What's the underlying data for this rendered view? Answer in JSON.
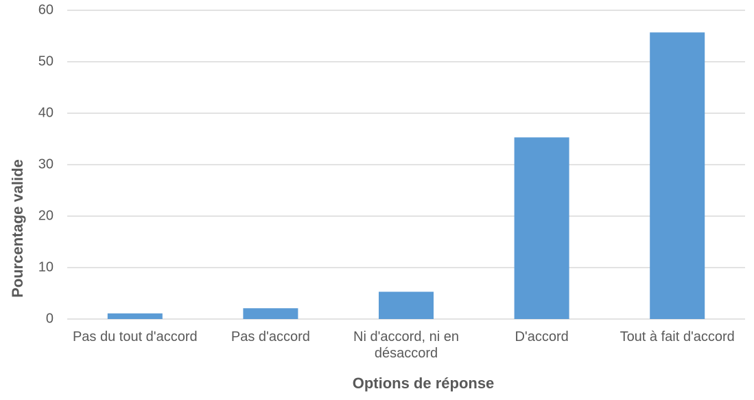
{
  "chart_data": {
    "type": "bar",
    "x_label": "Options de réponse",
    "y_label": "Pourcentage valide",
    "categories": [
      "Pas du tout d'accord",
      "Pas d'accord",
      "Ni d'accord, ni en désaccord",
      "D'accord",
      "Tout à fait d'accord"
    ],
    "values": [
      1.1,
      2.1,
      5.3,
      35.3,
      55.7
    ],
    "color": "#5b9bd5",
    "ylim": [
      0,
      60
    ],
    "yticks": [
      0,
      10,
      20,
      30,
      40,
      50,
      60
    ],
    "grid": true
  }
}
